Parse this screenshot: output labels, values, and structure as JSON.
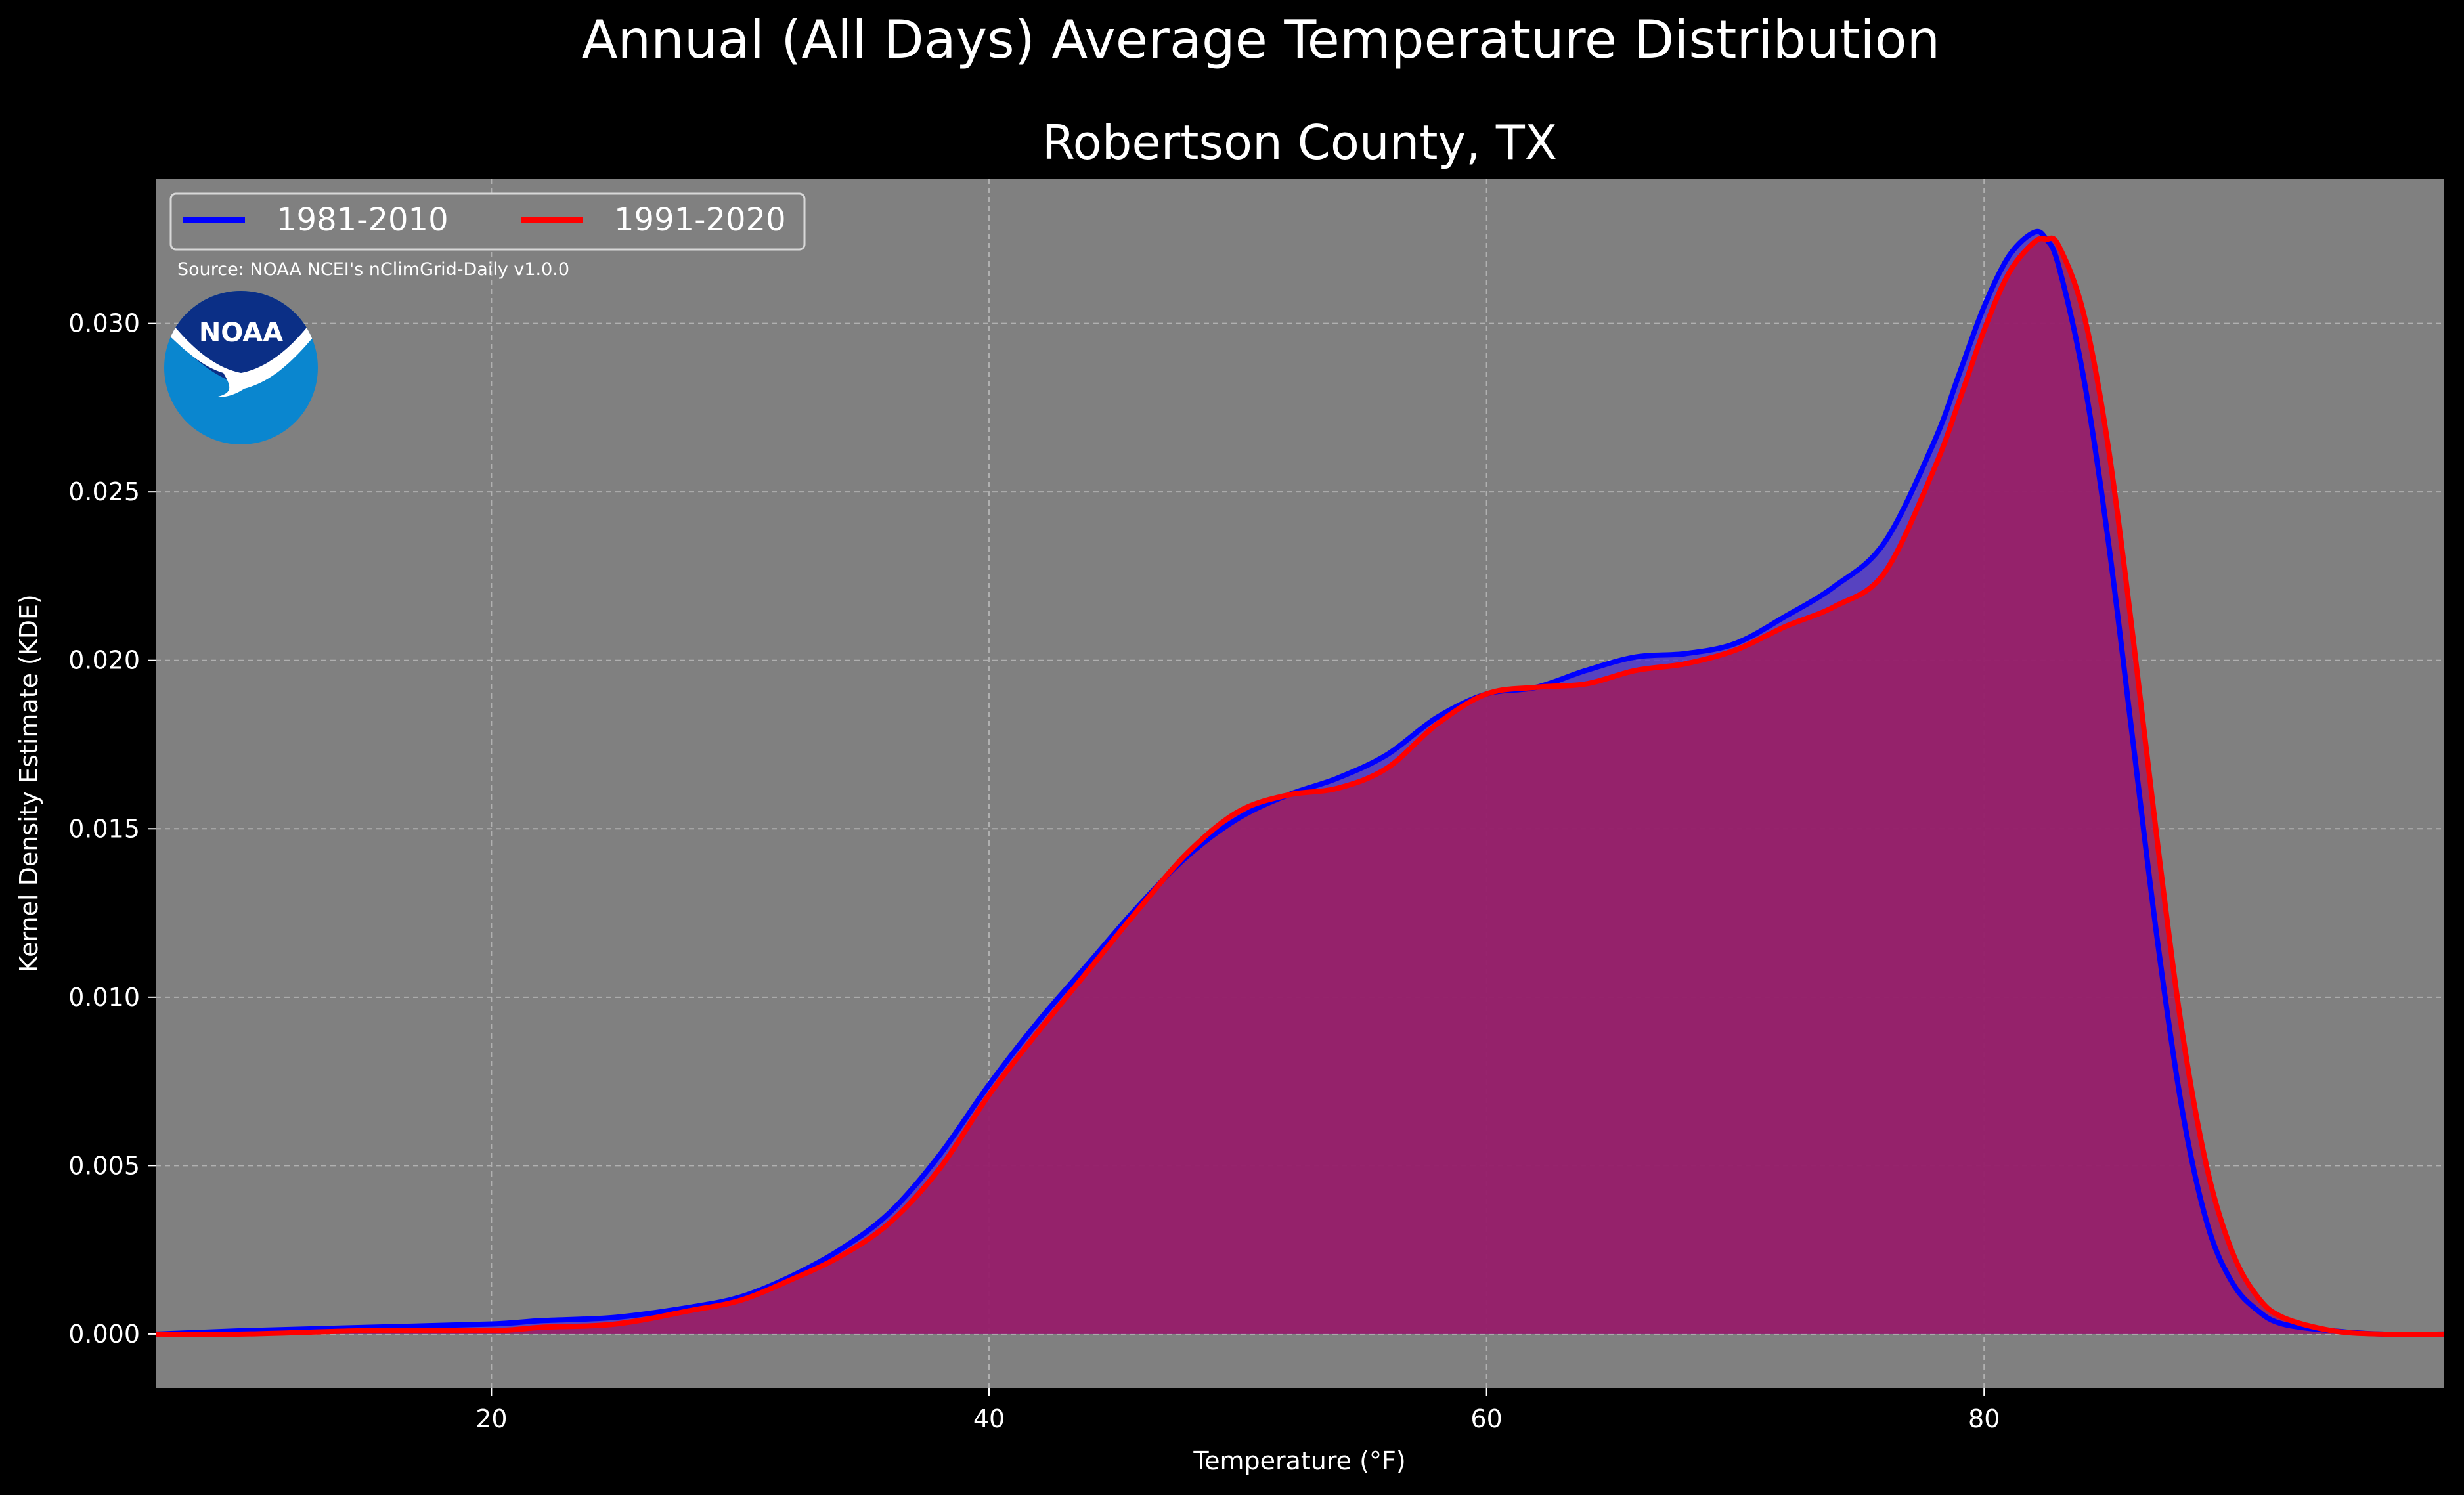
{
  "figure": {
    "suptitle": "Annual (All Days) Average Temperature Distribution",
    "background": "#000000"
  },
  "chart_data": {
    "type": "area",
    "title": "Robertson County, TX",
    "xlabel": "Temperature (°F)",
    "ylabel": "Kernel Density Estimate (KDE)",
    "xlim": [
      6.5,
      98.5
    ],
    "ylim": [
      -0.0016,
      0.0343
    ],
    "xticks": [
      20,
      40,
      60,
      80
    ],
    "yticks": [
      0.0,
      0.005,
      0.01,
      0.015,
      0.02,
      0.025,
      0.03
    ],
    "ytick_labels": [
      "0.000",
      "0.005",
      "0.010",
      "0.015",
      "0.020",
      "0.025",
      "0.030"
    ],
    "grid": true,
    "plot_background": "#808080",
    "legend": {
      "placement": "top-left",
      "columns": 2
    },
    "source_note": "Source: NOAA NCEI's nClimGrid-Daily v1.0.0",
    "logo": {
      "text": "NOAA",
      "icon": "noaa-logo-icon"
    },
    "series": [
      {
        "name": "1981-2010",
        "color": "#0000ff",
        "fill": "#4a2fd6",
        "x": [
          6.5,
          10,
          15,
          20,
          22,
          25,
          28,
          30,
          32,
          34,
          36,
          38,
          40,
          42,
          44,
          46,
          48,
          50,
          52,
          54,
          56,
          58,
          60,
          62,
          64,
          66,
          68,
          70,
          72,
          74,
          76,
          78,
          79,
          80,
          81,
          82,
          82.5,
          83,
          84,
          85,
          86,
          87,
          88,
          89,
          90,
          91,
          92,
          94,
          96,
          98.5
        ],
        "y": [
          0.0,
          0.0001,
          0.0002,
          0.0003,
          0.0004,
          0.0005,
          0.0008,
          0.0011,
          0.0017,
          0.0025,
          0.0036,
          0.0053,
          0.0074,
          0.0093,
          0.011,
          0.0127,
          0.0142,
          0.0153,
          0.016,
          0.0165,
          0.0172,
          0.0183,
          0.019,
          0.0192,
          0.0197,
          0.0201,
          0.0202,
          0.0205,
          0.0213,
          0.0222,
          0.0235,
          0.0265,
          0.0285,
          0.0305,
          0.032,
          0.0327,
          0.0325,
          0.0317,
          0.0284,
          0.0235,
          0.0175,
          0.0115,
          0.0065,
          0.0032,
          0.0015,
          0.0007,
          0.0003,
          0.0001,
          0.0,
          0.0
        ]
      },
      {
        "name": "1991-2020",
        "color": "#ff0000",
        "fill": "#a01c5c",
        "x": [
          6.5,
          10,
          15,
          20,
          22,
          25,
          28,
          30,
          32,
          34,
          36,
          38,
          40,
          42,
          44,
          46,
          48,
          50,
          52,
          54,
          56,
          58,
          60,
          62,
          64,
          66,
          68,
          70,
          72,
          74,
          76,
          78,
          79,
          80,
          81,
          82,
          82.5,
          83,
          84,
          85,
          86,
          87,
          88,
          89,
          90,
          91,
          92,
          94,
          96,
          98.5
        ],
        "y": [
          0.0,
          0.0,
          0.0001,
          0.0001,
          0.0002,
          0.0003,
          0.0007,
          0.001,
          0.0016,
          0.0023,
          0.0033,
          0.0049,
          0.0071,
          0.009,
          0.0108,
          0.0126,
          0.0143,
          0.0155,
          0.016,
          0.0162,
          0.0168,
          0.0181,
          0.019,
          0.0192,
          0.0193,
          0.0197,
          0.0199,
          0.0203,
          0.021,
          0.0216,
          0.0226,
          0.0257,
          0.0277,
          0.0298,
          0.0315,
          0.0324,
          0.0325,
          0.0323,
          0.0303,
          0.0263,
          0.0206,
          0.0144,
          0.0088,
          0.0048,
          0.0024,
          0.0011,
          0.0005,
          0.0001,
          0.0,
          0.0
        ]
      }
    ]
  }
}
